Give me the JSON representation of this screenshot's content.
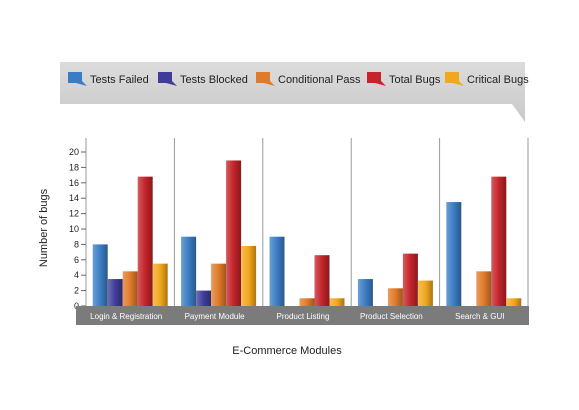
{
  "chart_data": {
    "type": "bar",
    "title": "",
    "xlabel": "E-Commerce Modules",
    "ylabel": "Number of bugs",
    "ylim": [
      0,
      20
    ],
    "yticks": [
      0,
      2,
      4,
      6,
      8,
      10,
      12,
      14,
      16,
      18,
      20
    ],
    "grid": false,
    "legend_position": "top",
    "categories": [
      "Login & Registration",
      "Payment Module",
      "Product Listing",
      "Product Selection",
      "Search & GUI"
    ],
    "series": [
      {
        "name": "Tests Failed",
        "color": "#3b7dc4",
        "values": [
          8,
          9,
          9,
          3.5,
          13.5
        ]
      },
      {
        "name": "Tests Blocked",
        "color": "#3f3d99",
        "values": [
          3.5,
          2,
          0,
          0,
          0
        ]
      },
      {
        "name": "Conditional Pass",
        "color": "#e07b2a",
        "values": [
          4.5,
          5.5,
          1,
          2.3,
          4.5
        ]
      },
      {
        "name": "Total Bugs",
        "color": "#c4242a",
        "values": [
          16.8,
          18.9,
          6.6,
          6.8,
          16.8
        ]
      },
      {
        "name": "Critical Bugs",
        "color": "#f2a81d",
        "values": [
          5.5,
          7.8,
          1,
          3.3,
          1
        ]
      }
    ]
  }
}
